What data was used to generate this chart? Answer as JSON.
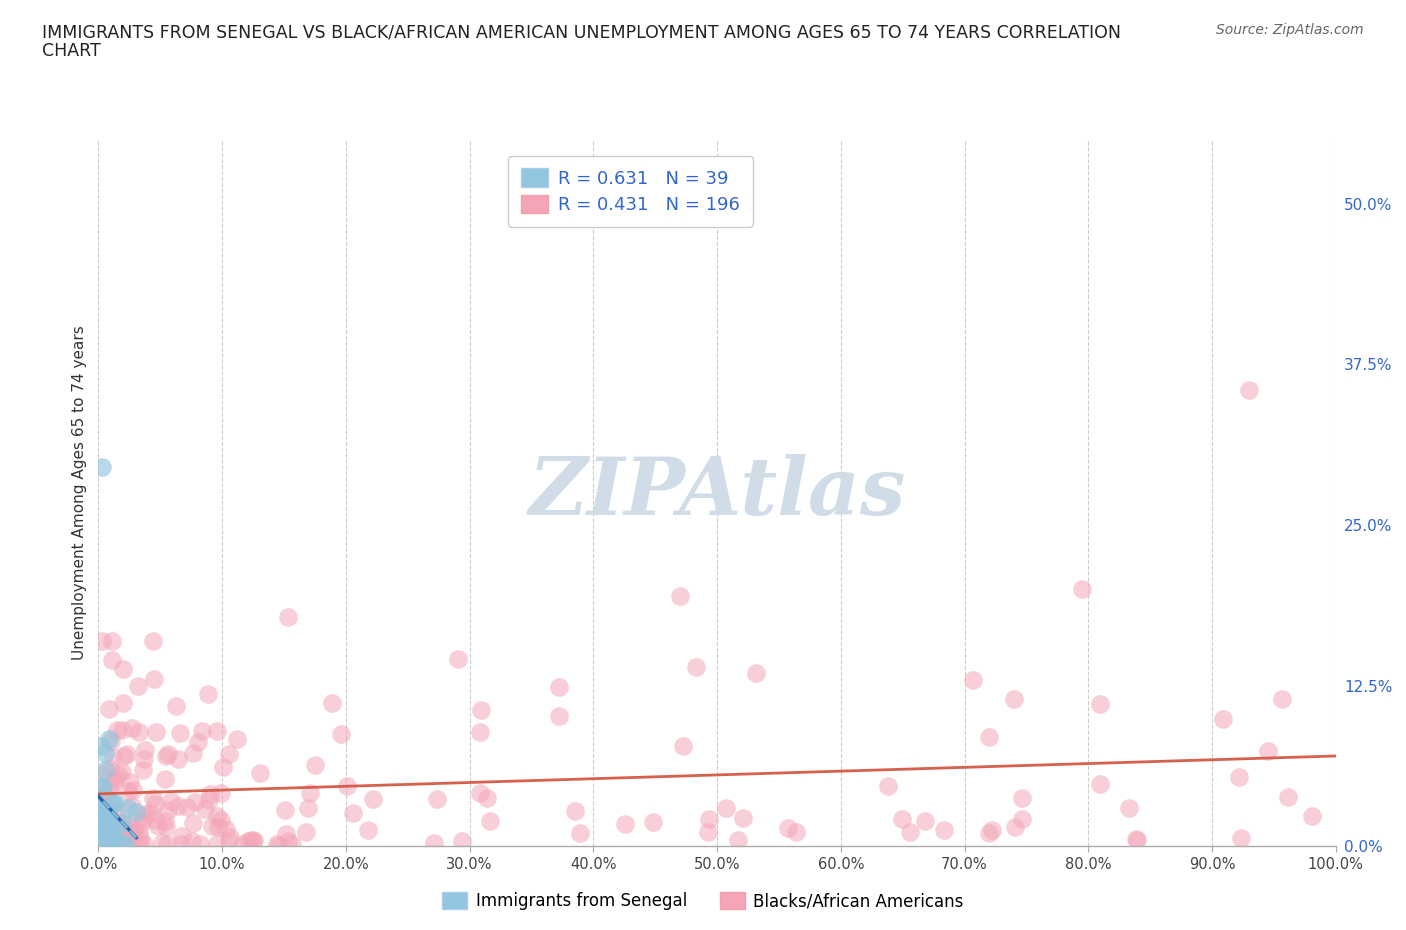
{
  "title_line1": "IMMIGRANTS FROM SENEGAL VS BLACK/AFRICAN AMERICAN UNEMPLOYMENT AMONG AGES 65 TO 74 YEARS CORRELATION",
  "title_line2": "CHART",
  "source": "Source: ZipAtlas.com",
  "ylabel": "Unemployment Among Ages 65 to 74 years",
  "xlim": [
    0.0,
    1.0
  ],
  "ylim": [
    0.0,
    0.55
  ],
  "yticks": [
    0.0,
    0.125,
    0.25,
    0.375,
    0.5
  ],
  "ytick_labels": [
    "0.0%",
    "12.5%",
    "25.0%",
    "37.5%",
    "50.0%"
  ],
  "xtick_labels": [
    "0.0%",
    "10.0%",
    "20.0%",
    "30.0%",
    "40.0%",
    "50.0%",
    "60.0%",
    "70.0%",
    "80.0%",
    "90.0%",
    "100.0%"
  ],
  "blue_R": 0.631,
  "blue_N": 39,
  "pink_R": 0.431,
  "pink_N": 196,
  "blue_color": "#92c5de",
  "pink_color": "#f4a6b8",
  "blue_line_color": "#2166ac",
  "pink_line_color": "#d6604d",
  "watermark": "ZIPAtlas",
  "watermark_color": "#d0dde8",
  "legend_label_blue": "Immigrants from Senegal",
  "legend_label_pink": "Blacks/African Americans",
  "background_color": "#ffffff",
  "grid_color": "#cccccc"
}
